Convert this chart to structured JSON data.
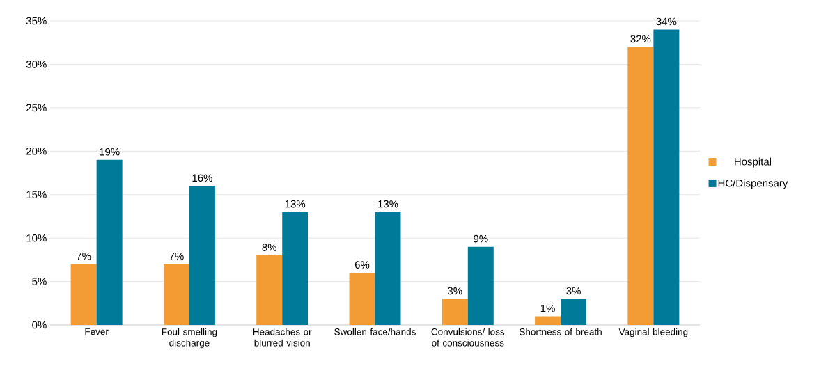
{
  "chart_data": {
    "type": "bar",
    "categories": [
      "Fever",
      "Foul smelling discharge",
      "Headaches or blurred vision",
      "Swollen face/hands",
      "Convulsions/ loss of consciousness",
      "Shortness of breath",
      "Vaginal bleeding"
    ],
    "series": [
      {
        "name": "Hospital",
        "color": "#f29c33",
        "values": [
          7,
          7,
          8,
          6,
          3,
          1,
          32
        ],
        "value_labels": [
          "7%",
          "7%",
          "8%",
          "6%",
          "3%",
          "1%",
          "32%"
        ]
      },
      {
        "name": "HC/Dispensary",
        "color": "#007a99",
        "values": [
          19,
          16,
          13,
          13,
          9,
          3,
          34
        ],
        "value_labels": [
          "19%",
          "16%",
          "13%",
          "13%",
          "9%",
          "3%",
          "34%"
        ]
      }
    ],
    "ylim": [
      0,
      35
    ],
    "yticks": [
      {
        "value": 0,
        "label": "0%"
      },
      {
        "value": 5,
        "label": "5%"
      },
      {
        "value": 10,
        "label": "10%"
      },
      {
        "value": 15,
        "label": "15%"
      },
      {
        "value": 20,
        "label": "20%"
      },
      {
        "value": 25,
        "label": "25%"
      },
      {
        "value": 30,
        "label": "30%"
      },
      {
        "value": 35,
        "label": "35%"
      }
    ],
    "grid": "y",
    "legend": "right"
  }
}
